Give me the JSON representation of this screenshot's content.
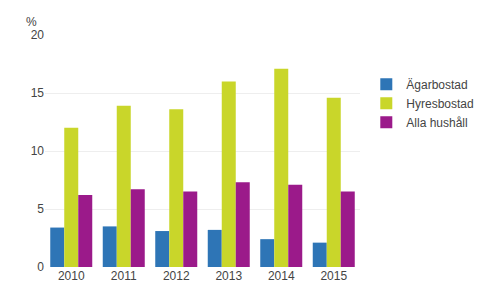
{
  "chart_data": {
    "type": "bar",
    "ylabel": "%",
    "categories": [
      "2010",
      "2011",
      "2012",
      "2013",
      "2014",
      "2015"
    ],
    "series": [
      {
        "name": "Ägarbostad",
        "color": "#2e75b6",
        "values": [
          3.4,
          3.5,
          3.1,
          3.2,
          2.4,
          2.1
        ]
      },
      {
        "name": "Hyresbostad",
        "color": "#c9d62a",
        "values": [
          12.0,
          13.9,
          13.6,
          16.0,
          17.1,
          14.6
        ]
      },
      {
        "name": "Alla hushåll",
        "color": "#9b1a8a",
        "values": [
          6.2,
          6.7,
          6.5,
          7.3,
          7.1,
          6.5
        ]
      }
    ],
    "ylim": [
      0,
      20
    ],
    "yticks": [
      0,
      5,
      10,
      15,
      20
    ],
    "grid": true,
    "legend": "right"
  }
}
